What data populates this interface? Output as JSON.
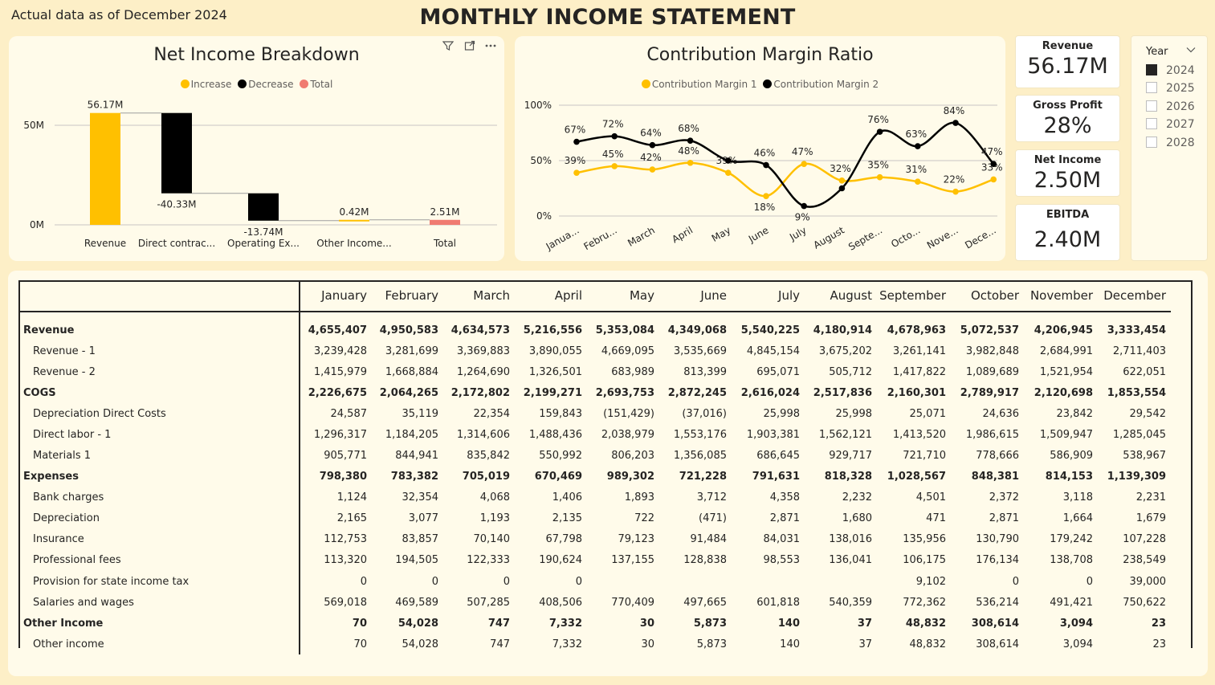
{
  "header": {
    "as_of": "Actual data as of December 2024",
    "title": "MONTHLY INCOME STATEMENT"
  },
  "colors": {
    "increase": "#ffc000",
    "decrease": "#000000",
    "total": "#f07b71",
    "cm1": "#ffc000",
    "cm2": "#000000"
  },
  "waterfall": {
    "title": "Net Income Breakdown",
    "legend": [
      "Increase",
      "Decrease",
      "Total"
    ],
    "icons": [
      "filter-icon",
      "focus-mode-icon",
      "more-options-icon"
    ],
    "y_ticks": [
      "50M",
      "0M"
    ],
    "chart_data": {
      "type": "bar",
      "categories": [
        "Revenue",
        "Direct contrac...",
        "Operating Ex...",
        "Other Income...",
        "Total"
      ],
      "values": [
        56.17,
        -40.33,
        -13.74,
        0.42,
        2.51
      ],
      "data_labels": [
        "56.17M",
        "-40.33M",
        "-13.74M",
        "0.42M",
        "2.51M"
      ],
      "kinds": [
        "increase",
        "decrease",
        "decrease",
        "increase",
        "total"
      ],
      "ylim": [
        0,
        60
      ]
    }
  },
  "cm": {
    "title": "Contribution Margin Ratio",
    "legend": [
      "Contribution Margin 1",
      "Contribution Margin 2"
    ],
    "y_ticks": [
      "100%",
      "50%",
      "0%"
    ],
    "chart_data": {
      "type": "line",
      "x": [
        "Janua...",
        "Febru...",
        "March",
        "April",
        "May",
        "June",
        "July",
        "August",
        "Septe...",
        "Octo...",
        "Nove...",
        "Dece..."
      ],
      "series": [
        {
          "name": "Contribution Margin 1",
          "values": [
            39,
            45,
            42,
            48,
            39,
            18,
            47,
            32,
            35,
            31,
            22,
            33
          ],
          "labels": [
            "39%",
            "45%",
            "42%",
            "48%",
            "39%",
            "18%",
            "47%",
            "32%",
            "35%",
            "31%",
            "22%",
            "33%"
          ]
        },
        {
          "name": "Contribution Margin 2",
          "values": [
            67,
            72,
            64,
            68,
            50,
            46,
            9,
            25,
            76,
            63,
            84,
            47
          ],
          "labels": [
            "67%",
            "72%",
            "64%",
            "68%",
            "",
            "46%",
            "9%",
            "",
            "76%",
            "63%",
            "84%",
            "47%"
          ]
        }
      ],
      "ylim": [
        0,
        100
      ]
    }
  },
  "kpis": [
    {
      "label": "Revenue",
      "value": "56.17M"
    },
    {
      "label": "Gross Profit",
      "value": "28%"
    },
    {
      "label": "Net Income",
      "value": "2.50M"
    },
    {
      "label": "EBITDA",
      "value": "2.40M"
    }
  ],
  "slicer": {
    "title": "Year",
    "options": [
      {
        "label": "2024",
        "checked": true
      },
      {
        "label": "2025",
        "checked": false
      },
      {
        "label": "2026",
        "checked": false
      },
      {
        "label": "2027",
        "checked": false
      },
      {
        "label": "2028",
        "checked": false
      }
    ]
  },
  "table": {
    "columns": [
      "January",
      "February",
      "March",
      "April",
      "May",
      "June",
      "July",
      "August",
      "September",
      "October",
      "November",
      "December"
    ],
    "rows": [
      {
        "label": "Revenue",
        "group": true,
        "values": [
          "4,655,407",
          "4,950,583",
          "4,634,573",
          "5,216,556",
          "5,353,084",
          "4,349,068",
          "5,540,225",
          "4,180,914",
          "4,678,963",
          "5,072,537",
          "4,206,945",
          "3,333,454"
        ]
      },
      {
        "label": "Revenue - 1",
        "group": false,
        "values": [
          "3,239,428",
          "3,281,699",
          "3,369,883",
          "3,890,055",
          "4,669,095",
          "3,535,669",
          "4,845,154",
          "3,675,202",
          "3,261,141",
          "3,982,848",
          "2,684,991",
          "2,711,403"
        ]
      },
      {
        "label": "Revenue - 2",
        "group": false,
        "values": [
          "1,415,979",
          "1,668,884",
          "1,264,690",
          "1,326,501",
          "683,989",
          "813,399",
          "695,071",
          "505,712",
          "1,417,822",
          "1,089,689",
          "1,521,954",
          "622,051"
        ]
      },
      {
        "label": "COGS",
        "group": true,
        "values": [
          "2,226,675",
          "2,064,265",
          "2,172,802",
          "2,199,271",
          "2,693,753",
          "2,872,245",
          "2,616,024",
          "2,517,836",
          "2,160,301",
          "2,789,917",
          "2,120,698",
          "1,853,554"
        ]
      },
      {
        "label": "Depreciation Direct Costs",
        "group": false,
        "values": [
          "24,587",
          "35,119",
          "22,354",
          "159,843",
          "(151,429)",
          "(37,016)",
          "25,998",
          "25,998",
          "25,071",
          "24,636",
          "23,842",
          "29,542"
        ]
      },
      {
        "label": "Direct labor - 1",
        "group": false,
        "values": [
          "1,296,317",
          "1,184,205",
          "1,314,606",
          "1,488,436",
          "2,038,979",
          "1,553,176",
          "1,903,381",
          "1,562,121",
          "1,413,520",
          "1,986,615",
          "1,509,947",
          "1,285,045"
        ]
      },
      {
        "label": "Materials 1",
        "group": false,
        "values": [
          "905,771",
          "844,941",
          "835,842",
          "550,992",
          "806,203",
          "1,356,085",
          "686,645",
          "929,717",
          "721,710",
          "778,666",
          "586,909",
          "538,967"
        ]
      },
      {
        "label": "Expenses",
        "group": true,
        "values": [
          "798,380",
          "783,382",
          "705,019",
          "670,469",
          "989,302",
          "721,228",
          "791,631",
          "818,328",
          "1,028,567",
          "848,381",
          "814,153",
          "1,139,309"
        ]
      },
      {
        "label": "Bank charges",
        "group": false,
        "values": [
          "1,124",
          "32,354",
          "4,068",
          "1,406",
          "1,893",
          "3,712",
          "4,358",
          "2,232",
          "4,501",
          "2,372",
          "3,118",
          "2,231"
        ]
      },
      {
        "label": "Depreciation",
        "group": false,
        "values": [
          "2,165",
          "3,077",
          "1,193",
          "2,135",
          "722",
          "(471)",
          "2,871",
          "1,680",
          "471",
          "2,871",
          "1,664",
          "1,679"
        ]
      },
      {
        "label": "Insurance",
        "group": false,
        "values": [
          "112,753",
          "83,857",
          "70,140",
          "67,798",
          "79,123",
          "91,484",
          "84,031",
          "138,016",
          "135,956",
          "130,790",
          "179,242",
          "107,228"
        ]
      },
      {
        "label": "Professional fees",
        "group": false,
        "values": [
          "113,320",
          "194,505",
          "122,333",
          "190,624",
          "137,155",
          "128,838",
          "98,553",
          "136,041",
          "106,175",
          "176,134",
          "138,708",
          "238,549"
        ]
      },
      {
        "label": "Provision for state income tax",
        "group": false,
        "values": [
          "0",
          "0",
          "0",
          "0",
          "",
          "",
          "",
          "",
          "9,102",
          "0",
          "0",
          "39,000"
        ]
      },
      {
        "label": "Salaries and wages",
        "group": false,
        "values": [
          "569,018",
          "469,589",
          "507,285",
          "408,506",
          "770,409",
          "497,665",
          "601,818",
          "540,359",
          "772,362",
          "536,214",
          "491,421",
          "750,622"
        ]
      },
      {
        "label": "Other Income",
        "group": true,
        "values": [
          "70",
          "54,028",
          "747",
          "7,332",
          "30",
          "5,873",
          "140",
          "37",
          "48,832",
          "308,614",
          "3,094",
          "23"
        ]
      },
      {
        "label": "Other income",
        "group": false,
        "values": [
          "70",
          "54,028",
          "747",
          "7,332",
          "30",
          "5,873",
          "140",
          "37",
          "48,832",
          "308,614",
          "3,094",
          "23"
        ]
      }
    ]
  }
}
